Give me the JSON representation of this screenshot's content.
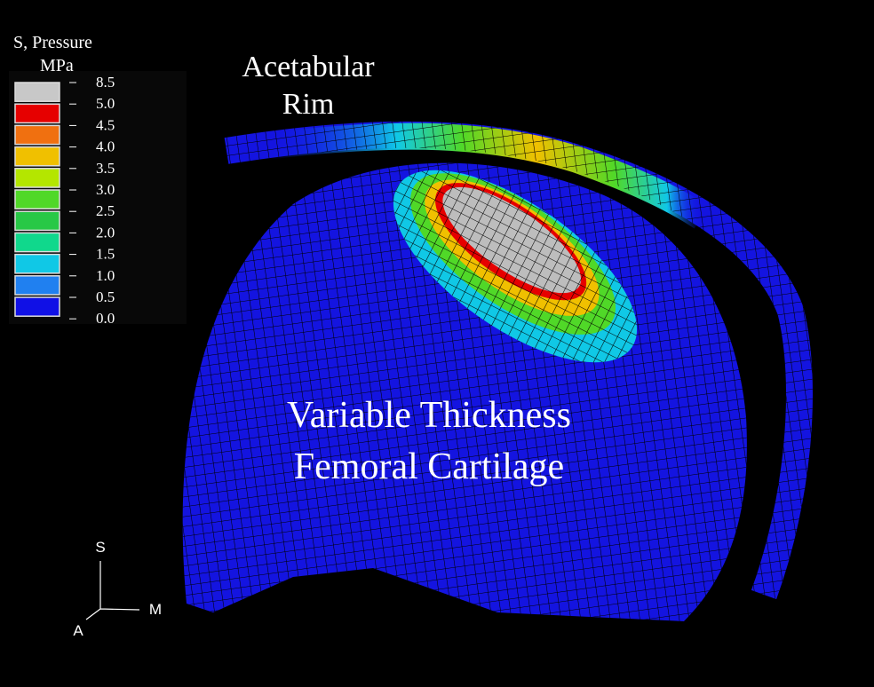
{
  "legend": {
    "title": "S, Pressure",
    "unit": "MPa",
    "labels": [
      "8.5",
      "5.0",
      "4.5",
      "4.0",
      "3.5",
      "3.0",
      "2.5",
      "2.0",
      "1.5",
      "1.0",
      "0.5",
      "0.0"
    ],
    "colors": [
      "#c8c8c8",
      "#e60000",
      "#f07010",
      "#f0c000",
      "#b4e600",
      "#50d828",
      "#28c846",
      "#10d88c",
      "#10c8e6",
      "#2080f0",
      "#1010e6"
    ]
  },
  "annotations": {
    "rim": [
      "Acetabular",
      "Rim"
    ],
    "cartilage": [
      "Variable Thickness",
      "Femoral Cartilage"
    ]
  },
  "triad": {
    "superior": "S",
    "medial": "M",
    "anterior": "A"
  }
}
